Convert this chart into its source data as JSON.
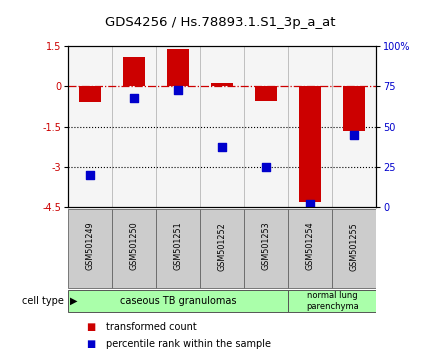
{
  "title": "GDS4256 / Hs.78893.1.S1_3p_a_at",
  "samples": [
    "GSM501249",
    "GSM501250",
    "GSM501251",
    "GSM501252",
    "GSM501253",
    "GSM501254",
    "GSM501255"
  ],
  "red_bars": [
    -0.6,
    1.1,
    1.4,
    0.12,
    -0.55,
    -4.3,
    -1.65
  ],
  "blue_dot_pct": [
    20,
    68,
    73,
    37,
    25,
    2,
    45
  ],
  "ylim_left": [
    -4.5,
    1.5
  ],
  "yticks_left": [
    -4.5,
    -3.0,
    -1.5,
    0,
    1.5
  ],
  "ytick_labels_left": [
    "-4.5",
    "-3",
    "-1.5",
    "0",
    "1.5"
  ],
  "ylim_right": [
    0,
    100
  ],
  "yticks_right": [
    0,
    25,
    50,
    75,
    100
  ],
  "ytick_labels_right": [
    "0",
    "25",
    "50",
    "75",
    "100%"
  ],
  "hline_y": 0,
  "dotted_lines": [
    -1.5,
    -3.0
  ],
  "group1_label": "caseous TB granulomas",
  "group1_samples": 5,
  "group2_label": "normal lung\nparenchyma",
  "group2_samples": 2,
  "group_color": "#aaffaa",
  "bar_color": "#cc0000",
  "dot_color": "#0000cc",
  "background_color": "#ffffff",
  "tick_bg_color": "#cccccc",
  "legend_items": [
    {
      "label": "transformed count",
      "color": "#cc0000"
    },
    {
      "label": "percentile rank within the sample",
      "color": "#0000cc"
    }
  ]
}
